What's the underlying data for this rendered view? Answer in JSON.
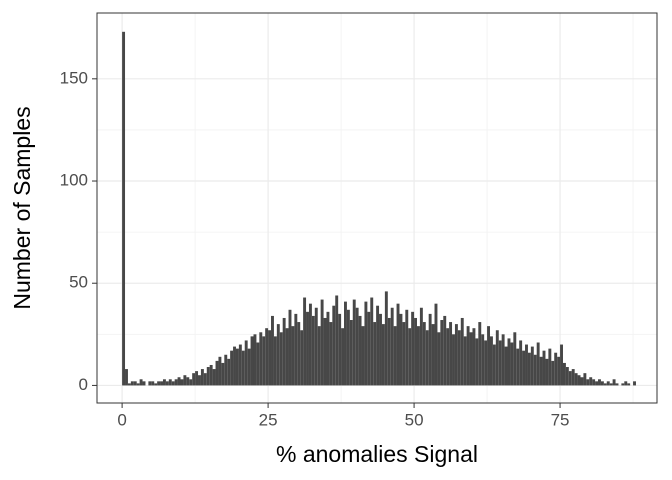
{
  "chart_data": {
    "type": "histogram",
    "x_label": "%  anomalies Signal",
    "y_label": "Number of Samples",
    "color": "#474747",
    "xlim": [
      -4.3,
      91.6
    ],
    "ylim": [
      -8.6,
      182.2
    ],
    "xticks": [
      0,
      25,
      50,
      75
    ],
    "yticks": [
      0,
      50,
      100,
      150
    ],
    "x_minor_ticks": [
      12.5,
      37.5,
      62.5,
      87.5
    ],
    "y_minor_ticks": [
      25,
      75,
      125
    ],
    "grid": true,
    "bins": [
      0,
      0.5,
      1,
      1.5,
      2,
      2.5,
      3,
      3.5,
      4,
      4.5,
      5,
      5.5,
      6,
      6.5,
      7,
      7.5,
      8,
      8.5,
      9,
      9.5,
      10,
      10.5,
      11,
      11.5,
      12,
      12.5,
      13,
      13.5,
      14,
      14.5,
      15,
      15.5,
      16,
      16.5,
      17,
      17.5,
      18,
      18.5,
      19,
      19.5,
      20,
      20.5,
      21,
      21.5,
      22,
      22.5,
      23,
      23.5,
      24,
      24.5,
      25,
      25.5,
      26,
      26.5,
      27,
      27.5,
      28,
      28.5,
      29,
      29.5,
      30,
      30.5,
      31,
      31.5,
      32,
      32.5,
      33,
      33.5,
      34,
      34.5,
      35,
      35.5,
      36,
      36.5,
      37,
      37.5,
      38,
      38.5,
      39,
      39.5,
      40,
      40.5,
      41,
      41.5,
      42,
      42.5,
      43,
      43.5,
      44,
      44.5,
      45,
      45.5,
      46,
      46.5,
      47,
      47.5,
      48,
      48.5,
      49,
      49.5,
      50,
      50.5,
      51,
      51.5,
      52,
      52.5,
      53,
      53.5,
      54,
      54.5,
      55,
      55.5,
      56,
      56.5,
      57,
      57.5,
      58,
      58.5,
      59,
      59.5,
      60,
      60.5,
      61,
      61.5,
      62,
      62.5,
      63,
      63.5,
      64,
      64.5,
      65,
      65.5,
      66,
      66.5,
      67,
      67.5,
      68,
      68.5,
      69,
      69.5,
      70,
      70.5,
      71,
      71.5,
      72,
      72.5,
      73,
      73.5,
      74,
      74.5,
      75,
      75.5,
      76,
      76.5,
      77,
      77.5,
      78,
      78.5,
      79,
      79.5,
      80,
      80.5,
      81,
      81.5,
      82,
      82.5,
      83,
      83.5,
      84,
      84.5,
      85,
      85.5,
      86,
      86.5,
      87,
      87.5,
      88
    ],
    "values": [
      173,
      8,
      1,
      2,
      2,
      1,
      3,
      2,
      0,
      2,
      2,
      1,
      2,
      2,
      3,
      2,
      3,
      2,
      3,
      4,
      3,
      5,
      4,
      3,
      6,
      7,
      5,
      8,
      6,
      9,
      10,
      8,
      12,
      14,
      11,
      15,
      13,
      17,
      19,
      18,
      20,
      17,
      22,
      18,
      24,
      25,
      21,
      26,
      24,
      28,
      27,
      34,
      24,
      30,
      26,
      33,
      28,
      37,
      29,
      35,
      31,
      27,
      43,
      36,
      40,
      34,
      38,
      29,
      42,
      33,
      36,
      31,
      39,
      44,
      35,
      28,
      41,
      37,
      32,
      42,
      38,
      34,
      29,
      41,
      36,
      43,
      31,
      39,
      35,
      30,
      46,
      33,
      38,
      29,
      40,
      35,
      31,
      37,
      28,
      36,
      33,
      29,
      38,
      31,
      27,
      35,
      30,
      40,
      26,
      32,
      34,
      28,
      31,
      25,
      30,
      27,
      33,
      24,
      29,
      26,
      28,
      23,
      31,
      25,
      22,
      29,
      24,
      20,
      27,
      22,
      25,
      19,
      23,
      21,
      26,
      18,
      22,
      17,
      20,
      16,
      19,
      15,
      21,
      14,
      17,
      13,
      18,
      12,
      16,
      14,
      20,
      11,
      9,
      7,
      8,
      6,
      5,
      4,
      6,
      3,
      4,
      3,
      2,
      3,
      2,
      1,
      2,
      1,
      3,
      1,
      0,
      1,
      2,
      1,
      0,
      2
    ]
  }
}
